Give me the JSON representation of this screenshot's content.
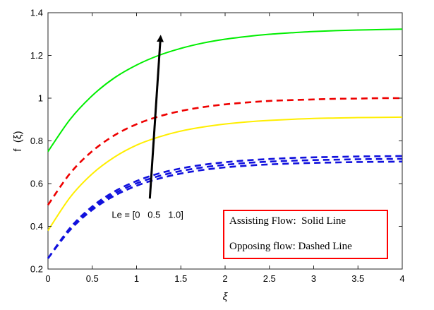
{
  "chart_data": {
    "type": "line",
    "title": "",
    "xlabel": "ξ",
    "ylabel": "f  (ξ)",
    "xlim": [
      0,
      4
    ],
    "ylim": [
      0.2,
      1.4
    ],
    "xticks": [
      0,
      0.5,
      1,
      1.5,
      2,
      2.5,
      3,
      3.5,
      4
    ],
    "yticks": [
      0.2,
      0.4,
      0.6,
      0.8,
      1,
      1.2,
      1.4
    ],
    "xtick_labels": [
      "0",
      "0.5",
      "1",
      "1.5",
      "2",
      "2.5",
      "3",
      "3.5",
      "4"
    ],
    "ytick_labels": [
      "0.2",
      "0.4",
      "0.6",
      "0.8",
      "1",
      "1.2",
      "1.4"
    ],
    "grid": false,
    "x": [
      0,
      0.25,
      0.5,
      0.75,
      1,
      1.25,
      1.5,
      1.75,
      2,
      2.25,
      2.5,
      2.75,
      3,
      3.25,
      3.5,
      3.75,
      4
    ],
    "series": [
      {
        "color": "#00ee00",
        "style": "solid",
        "values": [
          0.75,
          0.901,
          1.012,
          1.095,
          1.155,
          1.2,
          1.233,
          1.258,
          1.276,
          1.289,
          1.299,
          1.306,
          1.312,
          1.316,
          1.319,
          1.321,
          1.323
        ]
      },
      {
        "color": "#ee0000",
        "style": "dashed",
        "values": [
          0.5,
          0.648,
          0.752,
          0.826,
          0.878,
          0.914,
          0.94,
          0.958,
          0.971,
          0.98,
          0.987,
          0.991,
          0.994,
          0.997,
          0.998,
          1.0,
          1.0
        ]
      },
      {
        "color": "#ffee00",
        "style": "solid",
        "values": [
          0.38,
          0.536,
          0.646,
          0.724,
          0.78,
          0.818,
          0.846,
          0.865,
          0.879,
          0.889,
          0.896,
          0.901,
          0.905,
          0.907,
          0.909,
          0.91,
          0.911
        ]
      },
      {
        "color": "#1111dd",
        "style": "dashed",
        "values": [
          0.25,
          0.383,
          0.477,
          0.543,
          0.59,
          0.623,
          0.647,
          0.664,
          0.676,
          0.684,
          0.69,
          0.694,
          0.697,
          0.699,
          0.701,
          0.702,
          0.703
        ]
      },
      {
        "color": "#1111dd",
        "style": "dashed",
        "values": [
          0.25,
          0.388,
          0.485,
          0.553,
          0.601,
          0.635,
          0.659,
          0.676,
          0.688,
          0.697,
          0.703,
          0.707,
          0.71,
          0.712,
          0.714,
          0.715,
          0.716
        ]
      },
      {
        "color": "#1111dd",
        "style": "dashed",
        "values": [
          0.25,
          0.393,
          0.493,
          0.563,
          0.612,
          0.647,
          0.671,
          0.688,
          0.7,
          0.709,
          0.715,
          0.72,
          0.723,
          0.725,
          0.727,
          0.728,
          0.729
        ]
      }
    ],
    "arrow": {
      "from": [
        1.15,
        0.53
      ],
      "to": [
        1.27,
        1.28
      ]
    },
    "annotation": {
      "text": "Le = [0   0.5   1.0]",
      "at": [
        0.72,
        0.44
      ]
    },
    "legend_box": {
      "lines": [
        "Assisting Flow:  Solid Line",
        "Opposing flow: Dashed Line"
      ],
      "border_color": "#ff0000",
      "placement": "bottom-right"
    }
  }
}
